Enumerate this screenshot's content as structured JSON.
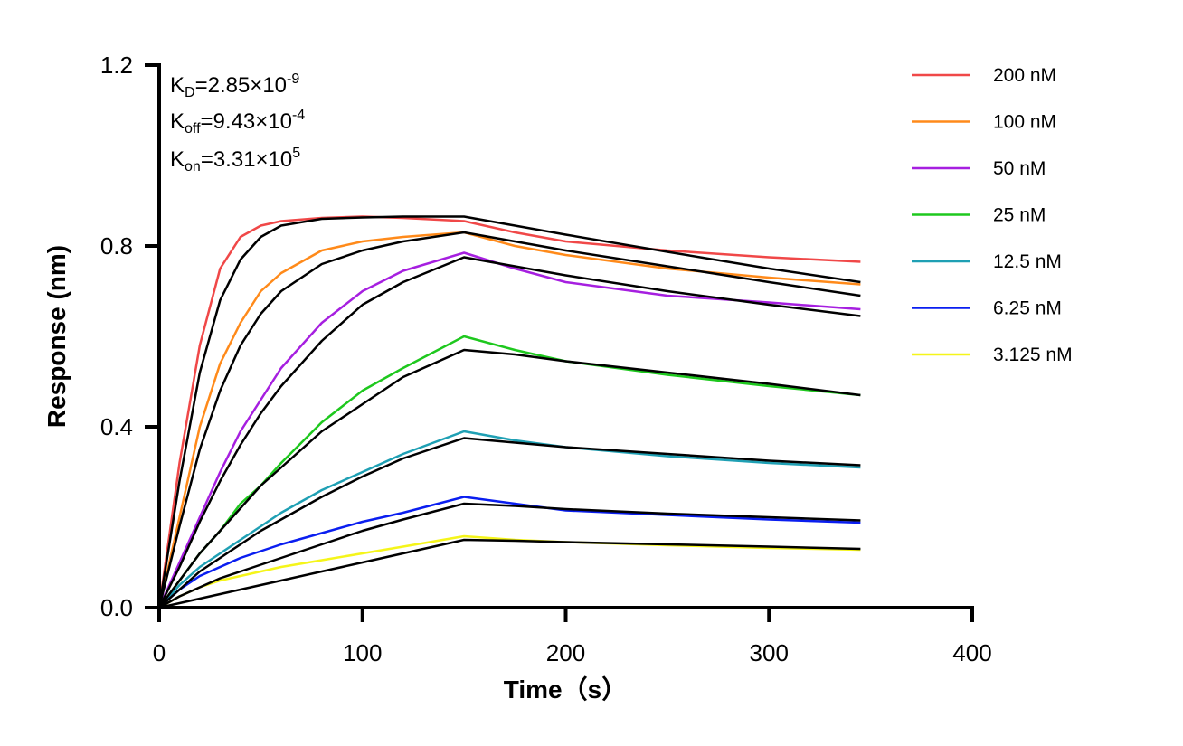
{
  "chart_data": {
    "type": "line",
    "xlabel": "Time（s）",
    "ylabel": "Response (nm)",
    "xlim": [
      0,
      400
    ],
    "ylim": [
      0,
      1.2
    ],
    "xticks": [
      "0",
      "100",
      "200",
      "300",
      "400"
    ],
    "yticks": [
      "0.0",
      "0.4",
      "0.8",
      "1.2"
    ],
    "grid": false,
    "legend_position": "right",
    "annotations": {
      "kd": {
        "label": "K",
        "sub": "D",
        "value": "=2.85×10",
        "exp": "-9"
      },
      "koff": {
        "label": "K",
        "sub": "off",
        "value": "=9.43×10",
        "exp": "-4"
      },
      "kon": {
        "label": "K",
        "sub": "on",
        "value": "=3.31×10",
        "exp": "5"
      }
    },
    "x": [
      0,
      10,
      20,
      30,
      40,
      50,
      60,
      80,
      100,
      120,
      150,
      175,
      200,
      250,
      300,
      345
    ],
    "series": [
      {
        "name": "200 nM",
        "color": "#f04848",
        "values": [
          0,
          0.32,
          0.58,
          0.75,
          0.82,
          0.845,
          0.855,
          0.862,
          0.865,
          0.862,
          0.855,
          0.83,
          0.81,
          0.79,
          0.775,
          0.765
        ]
      },
      {
        "name": "100 nM",
        "color": "#ff8a1a",
        "values": [
          0,
          0.2,
          0.4,
          0.54,
          0.63,
          0.7,
          0.74,
          0.79,
          0.81,
          0.82,
          0.83,
          0.8,
          0.78,
          0.75,
          0.73,
          0.715
        ]
      },
      {
        "name": "50 nM",
        "color": "#a61fe0",
        "values": [
          0,
          0.1,
          0.2,
          0.3,
          0.39,
          0.46,
          0.53,
          0.63,
          0.7,
          0.745,
          0.785,
          0.75,
          0.72,
          0.69,
          0.675,
          0.66
        ]
      },
      {
        "name": "25 nM",
        "color": "#1ec81e",
        "values": [
          0,
          0.06,
          0.12,
          0.17,
          0.23,
          0.27,
          0.32,
          0.41,
          0.48,
          0.53,
          0.6,
          0.57,
          0.545,
          0.515,
          0.49,
          0.47
        ]
      },
      {
        "name": "12.5 nM",
        "color": "#1fa0b4",
        "values": [
          0,
          0.05,
          0.09,
          0.12,
          0.15,
          0.18,
          0.21,
          0.26,
          0.3,
          0.34,
          0.39,
          0.37,
          0.355,
          0.335,
          0.32,
          0.31
        ]
      },
      {
        "name": "6.25 nM",
        "color": "#0a1ef0",
        "values": [
          0,
          0.04,
          0.07,
          0.09,
          0.11,
          0.125,
          0.14,
          0.165,
          0.19,
          0.21,
          0.245,
          0.23,
          0.215,
          0.205,
          0.195,
          0.188
        ]
      },
      {
        "name": "3.125 nM",
        "color": "#f5f51a",
        "values": [
          0,
          0.025,
          0.045,
          0.06,
          0.07,
          0.08,
          0.09,
          0.105,
          0.12,
          0.135,
          0.158,
          0.15,
          0.145,
          0.138,
          0.132,
          0.128
        ]
      }
    ],
    "fits": [
      {
        "color": "#000000",
        "values": [
          0,
          0.28,
          0.52,
          0.68,
          0.77,
          0.82,
          0.845,
          0.86,
          0.863,
          0.865,
          0.865,
          0.845,
          0.825,
          0.787,
          0.75,
          0.72
        ]
      },
      {
        "color": "#000000",
        "values": [
          0,
          0.18,
          0.35,
          0.48,
          0.58,
          0.65,
          0.7,
          0.76,
          0.79,
          0.81,
          0.83,
          0.81,
          0.79,
          0.755,
          0.72,
          0.69
        ]
      },
      {
        "color": "#000000",
        "values": [
          0,
          0.09,
          0.19,
          0.28,
          0.36,
          0.43,
          0.49,
          0.59,
          0.67,
          0.72,
          0.775,
          0.755,
          0.735,
          0.7,
          0.67,
          0.645
        ]
      },
      {
        "color": "#000000",
        "values": [
          0,
          0.06,
          0.12,
          0.17,
          0.22,
          0.27,
          0.31,
          0.39,
          0.45,
          0.51,
          0.57,
          0.56,
          0.545,
          0.52,
          0.495,
          0.47
        ]
      },
      {
        "color": "#000000",
        "values": [
          0,
          0.04,
          0.08,
          0.11,
          0.14,
          0.17,
          0.195,
          0.245,
          0.29,
          0.33,
          0.375,
          0.365,
          0.355,
          0.34,
          0.325,
          0.315
        ]
      },
      {
        "color": "#000000",
        "values": [
          0,
          0.025,
          0.045,
          0.065,
          0.08,
          0.095,
          0.11,
          0.14,
          0.17,
          0.195,
          0.23,
          0.225,
          0.218,
          0.208,
          0.2,
          0.193
        ]
      },
      {
        "color": "#000000",
        "values": [
          0,
          0.01,
          0.02,
          0.03,
          0.04,
          0.05,
          0.06,
          0.08,
          0.1,
          0.12,
          0.15,
          0.148,
          0.145,
          0.14,
          0.135,
          0.13
        ]
      }
    ]
  }
}
